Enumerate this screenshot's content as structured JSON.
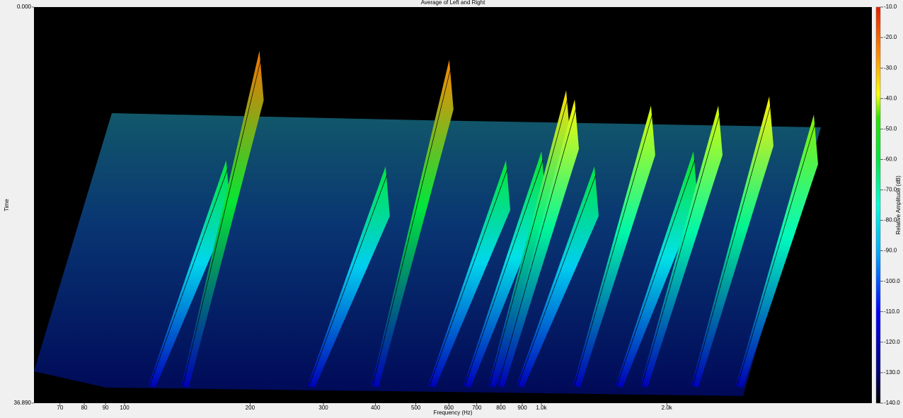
{
  "chart_data": {
    "type": "waterfall",
    "title": "Average of Left and Right",
    "x_label": "Frequency (Hz)",
    "y_label": "Time",
    "z_label": "Relative Amplitude (dB)",
    "x": [
      114,
      137,
      275,
      391,
      535,
      651,
      746,
      782,
      872,
      1192,
      1507,
      1729,
      2291,
      2931
    ],
    "values": [
      -58,
      -22,
      -60,
      -25,
      -58,
      -55,
      -35,
      -38,
      -60,
      -40,
      -55,
      -40,
      -37,
      -43
    ],
    "xlim": [
      60.6,
      6210
    ],
    "log_x": true,
    "xticks": [
      70,
      80,
      90,
      100,
      200,
      300,
      400,
      500,
      600,
      700,
      800,
      900,
      {
        "value": 1000,
        "label": "1.0k"
      },
      {
        "value": 2000,
        "label": "2.0k"
      }
    ],
    "ylim": [
      0,
      36.89
    ],
    "yticks": [
      {
        "value": 0,
        "label": "0.000"
      },
      {
        "value": 36.89,
        "label": "36.890"
      }
    ],
    "zlim": [
      -140,
      -10
    ],
    "zticks": [
      {
        "value": -10,
        "label": "-10.0"
      },
      {
        "value": -20,
        "label": "-20.0"
      },
      {
        "value": -30,
        "label": "-30.0"
      },
      {
        "value": -40,
        "label": "-40.0"
      },
      {
        "value": -50,
        "label": "-50.0"
      },
      {
        "value": -60,
        "label": "-60.0"
      },
      {
        "value": -70,
        "label": "-70.0"
      },
      {
        "value": -80,
        "label": "-80.0"
      },
      {
        "value": -90,
        "label": "-90.0"
      },
      {
        "value": -100,
        "label": "-100.0"
      },
      {
        "value": -110,
        "label": "-110.0"
      },
      {
        "value": -120,
        "label": "-120.0"
      },
      {
        "value": -130,
        "label": "-130.0"
      },
      {
        "value": -140,
        "label": "-140.0"
      }
    ]
  }
}
